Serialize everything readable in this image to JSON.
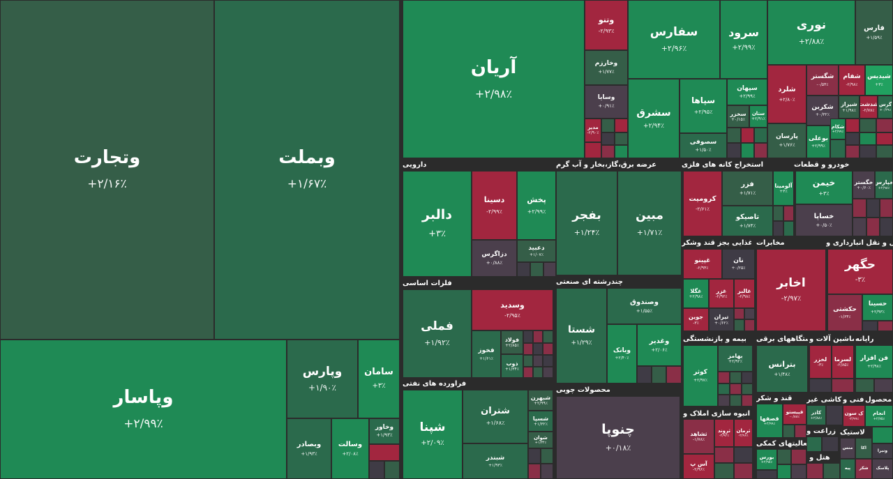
{
  "sectors": {
    "darooee": "دارویی",
    "arze_barq": "عرضه برق،گاز،بخار و آب گرم",
    "estekhraj_felezi": "استخراج کانه های فلزی",
    "khodro": "خودرو و قطعات",
    "felezat_asasi": "فلزات اساسی",
    "chandreshte": "چندرشته ای صنعتی",
    "ghazaee": "غذایی بجز قند وشکر",
    "mokhaberat": "مخابرات",
    "haml_naql": "حمل و نقل انبارداری و",
    "faravarde_nafti": "فراورده های نفتی",
    "mahsoolat_choobi": "محصولات چوبی",
    "bime": "بیمه و بازنشستگی",
    "dastgah_barqi": "دستگاههای برقی",
    "mashin_alat": "ماشین آلات و",
    "rayane": "رایانه",
    "anbooh_sazi": "انبوه سازی املاک و",
    "qand_shekar": "قند و شکر",
    "kashi": "کاشی غیر",
    "fanni": "فنی و",
    "mahsoolat": "محصول",
    "faaliat_komaki": "فعالیتهای کمکی",
    "zeraat": "زراعت و",
    "lastik": "لاستیک",
    "hotel": "هتل و"
  },
  "tiles": {
    "vtejarat": {
      "name": "وتجارت",
      "change": "+۲/۱۶٪"
    },
    "vbemellat": {
      "name": "وبملت",
      "change": "+۱/۶۷٪"
    },
    "vpasar": {
      "name": "وپاسار",
      "change": "+۲/۹۹٪"
    },
    "vpars": {
      "name": "وپارس",
      "change": "+۱/۹۰٪"
    },
    "saman": {
      "name": "سامان",
      "change": "+۳٪"
    },
    "vkhavar": {
      "name": "وخاور",
      "change": "+۱/۹۳٪"
    },
    "vsadr": {
      "name": "وبصادر",
      "change": "+۱/۹۳٪"
    },
    "vsalat": {
      "name": "وسالت",
      "change": "+۲/۰۸٪"
    },
    "aryan": {
      "name": "آریان",
      "change": "+۲/۹۸٪"
    },
    "vtoo": {
      "name": "وتنو",
      "change": "-۲/۹۳٪"
    },
    "vkharazm": {
      "name": "وخارزم",
      "change": "+۱/۷۷٪"
    },
    "vsapa": {
      "name": "وسایا",
      "change": "+۰/۹۱٪"
    },
    "vdabir": {
      "name": "مدیر",
      "change": "-۲/۹۰٪"
    },
    "safars": {
      "name": "سفارس",
      "change": "+۲/۹۶٪"
    },
    "sorood": {
      "name": "سرود",
      "change": "+۲/۹۹٪"
    },
    "noori": {
      "name": "نوری",
      "change": "+۲/۸۸٪"
    },
    "fars": {
      "name": "فارس",
      "change": "+۱/۵۹٪"
    },
    "sharq": {
      "name": "سشرق",
      "change": "+۲/۹۴٪"
    },
    "sepaha": {
      "name": "سپاها",
      "change": "+۲/۹۵٪"
    },
    "sepahan": {
      "name": "سپهان",
      "change": "+۲/۹۹٪"
    },
    "sakhazar": {
      "name": "سخزر",
      "change": "+۰/۱۵٪"
    },
    "sfan": {
      "name": "ستان",
      "change": "+۲/۹۱٪"
    },
    "sfoof": {
      "name": "سصوفی",
      "change": "+۱/۵۰٪"
    },
    "shlard": {
      "name": "شلرد",
      "change": "+۲/۸۰٪"
    },
    "shegostar": {
      "name": "شگستر",
      "change": "-۰/۵۴٪"
    },
    "shesham": {
      "name": "شفام",
      "change": "-۲/۹۸٪"
    },
    "shedis": {
      "name": "شیدیس",
      "change": "+۳٪"
    },
    "shkarin": {
      "name": "شکربن",
      "change": "+۰/۳۲٪"
    },
    "shiraz": {
      "name": "شیراز",
      "change": "+۱/۹۸٪"
    },
    "sheraz2": {
      "name": "شدشت",
      "change": "-۲/۷۸٪"
    },
    "shgorsi": {
      "name": "گرس",
      "change": "+۰/۲۹٪"
    },
    "parsan": {
      "name": "پارسان",
      "change": "+۱/۷۶٪"
    },
    "boali": {
      "name": "بوعلی",
      "change": "+۲/۹۹٪"
    },
    "shkam": {
      "name": "شکام",
      "change": "+۲/۹۹٪"
    },
    "dalbor": {
      "name": "دالبر",
      "change": "+۳٪"
    },
    "dsina": {
      "name": "دسینا",
      "change": "-۲/۹۹٪"
    },
    "pakhsh": {
      "name": "پخش",
      "change": "+۲/۹۹٪"
    },
    "dzagros": {
      "name": "دزاگرس",
      "change": "+۰/۸۸٪"
    },
    "dabid": {
      "name": "دعبید",
      "change": "+۱/۰۷٪"
    },
    "bfajr": {
      "name": "بفجر",
      "change": "+۱/۲۴٪"
    },
    "mobin": {
      "name": "مبین",
      "change": "+۱/۷۱٪"
    },
    "kromit": {
      "name": "کرومیت",
      "change": "-۲/۶۱٪"
    },
    "fzar": {
      "name": "فزر",
      "change": "+۱/۷۱٪"
    },
    "aloomina": {
      "name": "آلومینا",
      "change": "+۳٪"
    },
    "tasko": {
      "name": "تاصیکو",
      "change": "+۱/۷۴٪"
    },
    "khimen": {
      "name": "خیمن",
      "change": "+۳٪"
    },
    "khgostar": {
      "name": "خگستر",
      "change": "+۰/۶۰٪"
    },
    "khpars": {
      "name": "خپارس",
      "change": "+۲/۹۸٪"
    },
    "khsapa": {
      "name": "خساپا",
      "change": "+۰/۵۰٪"
    },
    "fameli": {
      "name": "فملی",
      "change": "+۱/۹۲٪"
    },
    "vsadid": {
      "name": "وسدید",
      "change": "-۲/۹۵٪"
    },
    "fkhooz": {
      "name": "فخوز",
      "change": "+۱/۶۱٪"
    },
    "foolad": {
      "name": "فولاد",
      "change": "+۲/۸۵٪"
    },
    "zob": {
      "name": "ذوب",
      "change": "+۱/۳۴٪"
    },
    "shasta": {
      "name": "شستا",
      "change": "+۱/۲۹٪"
    },
    "vsandooq": {
      "name": "وصندوق",
      "change": "+۱/۵۵٪"
    },
    "vghadir": {
      "name": "وغدیر",
      "change": "+۲/۰۶٪"
    },
    "vbank": {
      "name": "وبانک",
      "change": "+۲/۴۰٪"
    },
    "ghipino": {
      "name": "غپینو",
      "change": "-۲/۹۴٪"
    },
    "nan": {
      "name": "نان",
      "change": "+۰/۲۵٪"
    },
    "ghegola": {
      "name": "غگلا",
      "change": "+۲/۹۸٪"
    },
    "ghazar": {
      "name": "غزر",
      "change": "-۲/۹۲٪"
    },
    "ghalbor": {
      "name": "غالبر",
      "change": "-۲/۹۸٪"
    },
    "joobin": {
      "name": "جوین",
      "change": "-۳٪"
    },
    "tiran": {
      "name": "تیران",
      "change": "+۰/۶۲٪"
    },
    "akhaber": {
      "name": "اخابر",
      "change": "-۲/۹۷٪"
    },
    "hegohar": {
      "name": "حگهر",
      "change": "-۳٪"
    },
    "hakashti": {
      "name": "حکشتی",
      "change": "-۱/۶۴٪"
    },
    "hasina": {
      "name": "حسینا",
      "change": "+۲/۹۳٪"
    },
    "shepna": {
      "name": "شپنا",
      "change": "+۲/۰۹٪"
    },
    "shetran": {
      "name": "شتران",
      "change": "+۱/۶۸٪"
    },
    "shebahran": {
      "name": "شبهرن",
      "change": "+۲/۹۹٪"
    },
    "shesa": {
      "name": "شسپا",
      "change": "+۱/۳۲٪"
    },
    "shevan": {
      "name": "شوان",
      "change": "+۱/۳۴٪"
    },
    "shebandar": {
      "name": "شبندر",
      "change": "+۱/۹۳٪"
    },
    "chenopa": {
      "name": "چنوپا",
      "change": "+۰/۱۸٪"
    },
    "kovsar": {
      "name": "کوثر",
      "change": "+۲/۹۷٪"
    },
    "bahmaz": {
      "name": "بهامز",
      "change": "+۲/۹۲٪"
    },
    "betrans": {
      "name": "بترانس",
      "change": "+۱/۴۸٪"
    },
    "lekhzar": {
      "name": "لخزر",
      "change": "-۳٪"
    },
    "lesma": {
      "name": "لسرما",
      "change": "-۲/۸۵٪"
    },
    "fanafzar": {
      "name": "فن افزار",
      "change": "+۲/۹۸٪"
    },
    "sheshahed": {
      "name": "ثشاهد",
      "change": "-۱/۷۸٪"
    },
    "terood": {
      "name": "ثروند",
      "change": "-۲/۹۲٪"
    },
    "kerman": {
      "name": "ثرمان",
      "change": "-۲/۹۶٪"
    },
    "asp": {
      "name": "آس پ",
      "change": "-۲/۹۶٪"
    },
    "qasahaba": {
      "name": "قصفها",
      "change": "+۲/۹۹٪"
    },
    "qpisto": {
      "name": "قپیستو",
      "change": "-۰/۸۸٪"
    },
    "kaviz": {
      "name": "کاذر",
      "change": "+۲/۸۸٪"
    },
    "qsoon": {
      "name": "ک سون",
      "change": "-۲/۹۹٪"
    },
    "anjam": {
      "name": "انجام",
      "change": "+۲/۷۵٪"
    },
    "bors": {
      "name": "بورس",
      "change": "+۲/۹۸٪"
    },
    "vtoosa": {
      "name": "وتوسا",
      "change": ""
    },
    "zarnaroud": {
      "name": "زراعت",
      "change": ""
    },
    "hotelmns": {
      "name": "منس",
      "change": ""
    },
    "kashi": {
      "name": "کاشی",
      "change": ""
    },
    "ekala": {
      "name": "اکا",
      "change": ""
    },
    "vsheb": {
      "name": "شکر",
      "change": ""
    },
    "vanirar": {
      "name": "ونیرا",
      "change": ""
    },
    "lastikbrand": {
      "name": "پلاسک",
      "change": ""
    },
    "pye": {
      "name": "پیه",
      "change": ""
    },
    "gorm": {
      "name": "گرم",
      "change": ""
    }
  }
}
